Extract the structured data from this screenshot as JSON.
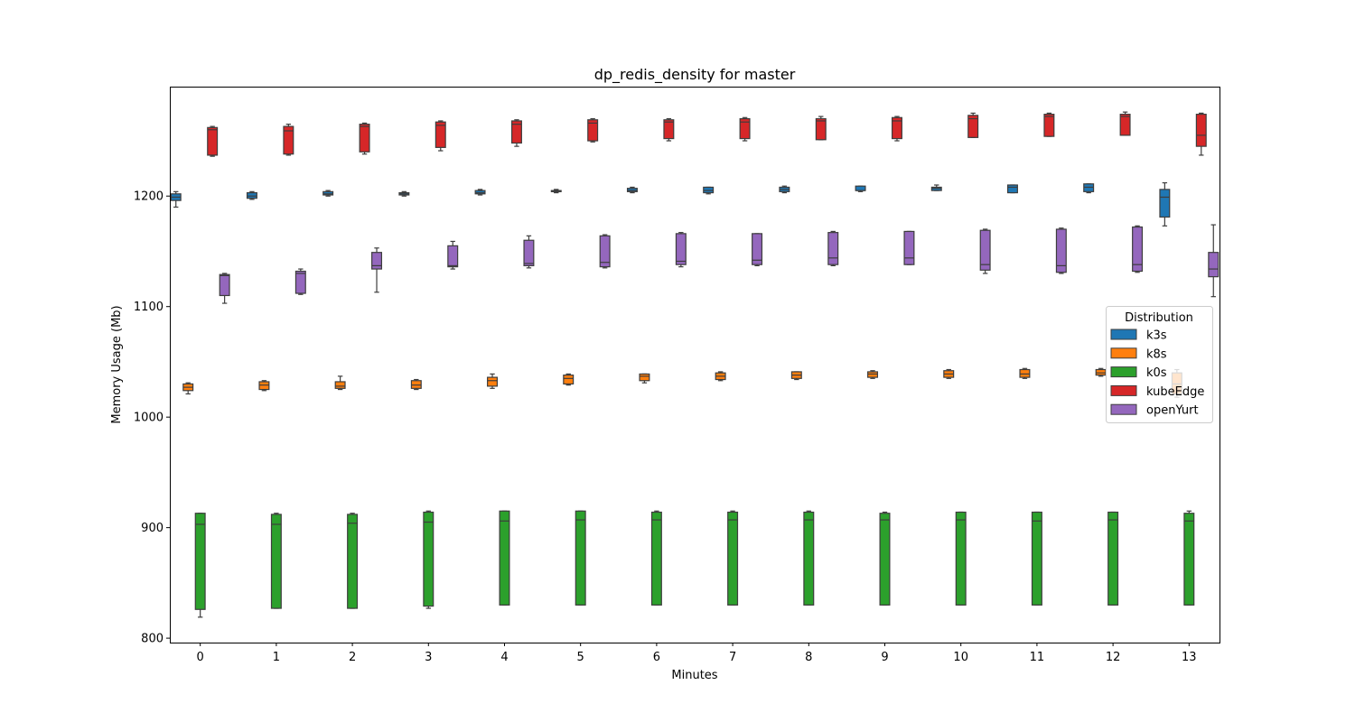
{
  "chart_data": {
    "type": "box",
    "title": "dp_redis_density for master",
    "xlabel": "Minutes",
    "ylabel": "Memory Usage (Mb)",
    "ylim": [
      796,
      1299
    ],
    "yticks": [
      800,
      900,
      1000,
      1100,
      1200
    ],
    "categories": [
      "0",
      "1",
      "2",
      "3",
      "4",
      "5",
      "6",
      "7",
      "8",
      "9",
      "10",
      "11",
      "12",
      "13"
    ],
    "legend": {
      "title": "Distribution",
      "position": "center-right"
    },
    "series": [
      {
        "name": "k3s",
        "color": "#1f77b4",
        "boxes": [
          {
            "min": 1190,
            "q1": 1196,
            "median": 1199,
            "q3": 1202,
            "max": 1204
          },
          {
            "min": 1197,
            "q1": 1198,
            "median": 1200,
            "q3": 1203,
            "max": 1204
          },
          {
            "min": 1200,
            "q1": 1201,
            "median": 1202,
            "q3": 1204,
            "max": 1205
          },
          {
            "min": 1200,
            "q1": 1201,
            "median": 1202,
            "q3": 1203,
            "max": 1204
          },
          {
            "min": 1201,
            "q1": 1202,
            "median": 1203,
            "q3": 1205,
            "max": 1206
          },
          {
            "min": 1203,
            "q1": 1204,
            "median": 1204,
            "q3": 1205,
            "max": 1206
          },
          {
            "min": 1203,
            "q1": 1204,
            "median": 1205,
            "q3": 1207,
            "max": 1208
          },
          {
            "min": 1202,
            "q1": 1203,
            "median": 1205,
            "q3": 1208,
            "max": 1208
          },
          {
            "min": 1203,
            "q1": 1204,
            "median": 1206,
            "q3": 1208,
            "max": 1209
          },
          {
            "min": 1204,
            "q1": 1205,
            "median": 1205,
            "q3": 1209,
            "max": 1209
          },
          {
            "min": 1205,
            "q1": 1205,
            "median": 1207,
            "q3": 1208,
            "max": 1210
          },
          {
            "min": 1203,
            "q1": 1203,
            "median": 1208,
            "q3": 1210,
            "max": 1210
          },
          {
            "min": 1203,
            "q1": 1204,
            "median": 1208,
            "q3": 1211,
            "max": 1211
          },
          {
            "min": 1173,
            "q1": 1181,
            "median": 1199,
            "q3": 1206,
            "max": 1212
          }
        ]
      },
      {
        "name": "k8s",
        "color": "#ff7f0e",
        "boxes": [
          {
            "min": 1021,
            "q1": 1024,
            "median": 1027,
            "q3": 1030,
            "max": 1031
          },
          {
            "min": 1024,
            "q1": 1025,
            "median": 1029,
            "q3": 1032,
            "max": 1033
          },
          {
            "min": 1025,
            "q1": 1026,
            "median": 1028,
            "q3": 1032,
            "max": 1037
          },
          {
            "min": 1025,
            "q1": 1026,
            "median": 1029,
            "q3": 1033,
            "max": 1034
          },
          {
            "min": 1026,
            "q1": 1028,
            "median": 1033,
            "q3": 1036,
            "max": 1039
          },
          {
            "min": 1029,
            "q1": 1030,
            "median": 1035,
            "q3": 1038,
            "max": 1039
          },
          {
            "min": 1031,
            "q1": 1033,
            "median": 1037,
            "q3": 1039,
            "max": 1039
          },
          {
            "min": 1033,
            "q1": 1034,
            "median": 1037,
            "q3": 1040,
            "max": 1041
          },
          {
            "min": 1034,
            "q1": 1035,
            "median": 1038,
            "q3": 1041,
            "max": 1041
          },
          {
            "min": 1035,
            "q1": 1036,
            "median": 1039,
            "q3": 1041,
            "max": 1042
          },
          {
            "min": 1035,
            "q1": 1036,
            "median": 1039,
            "q3": 1042,
            "max": 1043
          },
          {
            "min": 1035,
            "q1": 1036,
            "median": 1039,
            "q3": 1043,
            "max": 1044
          },
          {
            "min": 1037,
            "q1": 1038,
            "median": 1040,
            "q3": 1043,
            "max": 1044
          },
          {
            "min": 1018,
            "q1": 1021,
            "median": 1030,
            "q3": 1040,
            "max": 1043
          }
        ]
      },
      {
        "name": "k0s",
        "color": "#2ca02c",
        "boxes": [
          {
            "min": 819,
            "q1": 826,
            "median": 903,
            "q3": 913,
            "max": 913
          },
          {
            "min": 827,
            "q1": 827,
            "median": 903,
            "q3": 912,
            "max": 913
          },
          {
            "min": 827,
            "q1": 827,
            "median": 904,
            "q3": 912,
            "max": 913
          },
          {
            "min": 827,
            "q1": 829,
            "median": 905,
            "q3": 914,
            "max": 915
          },
          {
            "min": 830,
            "q1": 830,
            "median": 906,
            "q3": 915,
            "max": 915
          },
          {
            "min": 830,
            "q1": 830,
            "median": 907,
            "q3": 915,
            "max": 915
          },
          {
            "min": 830,
            "q1": 830,
            "median": 907,
            "q3": 914,
            "max": 915
          },
          {
            "min": 830,
            "q1": 830,
            "median": 907,
            "q3": 914,
            "max": 915
          },
          {
            "min": 830,
            "q1": 830,
            "median": 907,
            "q3": 914,
            "max": 915
          },
          {
            "min": 830,
            "q1": 830,
            "median": 907,
            "q3": 913,
            "max": 914
          },
          {
            "min": 830,
            "q1": 830,
            "median": 907,
            "q3": 914,
            "max": 914
          },
          {
            "min": 830,
            "q1": 830,
            "median": 906,
            "q3": 914,
            "max": 914
          },
          {
            "min": 830,
            "q1": 830,
            "median": 907,
            "q3": 914,
            "max": 914
          },
          {
            "min": 830,
            "q1": 830,
            "median": 906,
            "q3": 913,
            "max": 915
          }
        ]
      },
      {
        "name": "kubeEdge",
        "color": "#d62728",
        "boxes": [
          {
            "min": 1236,
            "q1": 1237,
            "median": 1260,
            "q3": 1262,
            "max": 1263
          },
          {
            "min": 1237,
            "q1": 1238,
            "median": 1259,
            "q3": 1263,
            "max": 1265
          },
          {
            "min": 1238,
            "q1": 1240,
            "median": 1263,
            "q3": 1265,
            "max": 1266
          },
          {
            "min": 1241,
            "q1": 1244,
            "median": 1264,
            "q3": 1267,
            "max": 1268
          },
          {
            "min": 1245,
            "q1": 1248,
            "median": 1265,
            "q3": 1268,
            "max": 1269
          },
          {
            "min": 1249,
            "q1": 1250,
            "median": 1266,
            "q3": 1269,
            "max": 1270
          },
          {
            "min": 1250,
            "q1": 1252,
            "median": 1267,
            "q3": 1269,
            "max": 1270
          },
          {
            "min": 1250,
            "q1": 1252,
            "median": 1267,
            "q3": 1270,
            "max": 1271
          },
          {
            "min": 1251,
            "q1": 1251,
            "median": 1268,
            "q3": 1270,
            "max": 1272
          },
          {
            "min": 1250,
            "q1": 1252,
            "median": 1268,
            "q3": 1271,
            "max": 1272
          },
          {
            "min": 1253,
            "q1": 1253,
            "median": 1270,
            "q3": 1273,
            "max": 1275
          },
          {
            "min": 1254,
            "q1": 1254,
            "median": 1272,
            "q3": 1274,
            "max": 1275
          },
          {
            "min": 1255,
            "q1": 1255,
            "median": 1272,
            "q3": 1274,
            "max": 1276
          },
          {
            "min": 1237,
            "q1": 1245,
            "median": 1255,
            "q3": 1274,
            "max": 1275
          }
        ]
      },
      {
        "name": "openYurt",
        "color": "#9467bd",
        "boxes": [
          {
            "min": 1103,
            "q1": 1110,
            "median": 1128,
            "q3": 1129,
            "max": 1130
          },
          {
            "min": 1111,
            "q1": 1112,
            "median": 1130,
            "q3": 1132,
            "max": 1134
          },
          {
            "min": 1113,
            "q1": 1134,
            "median": 1137,
            "q3": 1149,
            "max": 1153
          },
          {
            "min": 1134,
            "q1": 1136,
            "median": 1137,
            "q3": 1155,
            "max": 1159
          },
          {
            "min": 1135,
            "q1": 1137,
            "median": 1139,
            "q3": 1160,
            "max": 1164
          },
          {
            "min": 1135,
            "q1": 1136,
            "median": 1140,
            "q3": 1164,
            "max": 1165
          },
          {
            "min": 1136,
            "q1": 1138,
            "median": 1141,
            "q3": 1166,
            "max": 1167
          },
          {
            "min": 1137,
            "q1": 1138,
            "median": 1142,
            "q3": 1166,
            "max": 1166
          },
          {
            "min": 1137,
            "q1": 1138,
            "median": 1144,
            "q3": 1167,
            "max": 1168
          },
          {
            "min": 1138,
            "q1": 1138,
            "median": 1144,
            "q3": 1168,
            "max": 1168
          },
          {
            "min": 1130,
            "q1": 1133,
            "median": 1138,
            "q3": 1169,
            "max": 1170
          },
          {
            "min": 1130,
            "q1": 1131,
            "median": 1137,
            "q3": 1170,
            "max": 1171
          },
          {
            "min": 1131,
            "q1": 1132,
            "median": 1138,
            "q3": 1172,
            "max": 1173
          },
          {
            "min": 1109,
            "q1": 1127,
            "median": 1134,
            "q3": 1149,
            "max": 1174
          }
        ]
      }
    ]
  }
}
